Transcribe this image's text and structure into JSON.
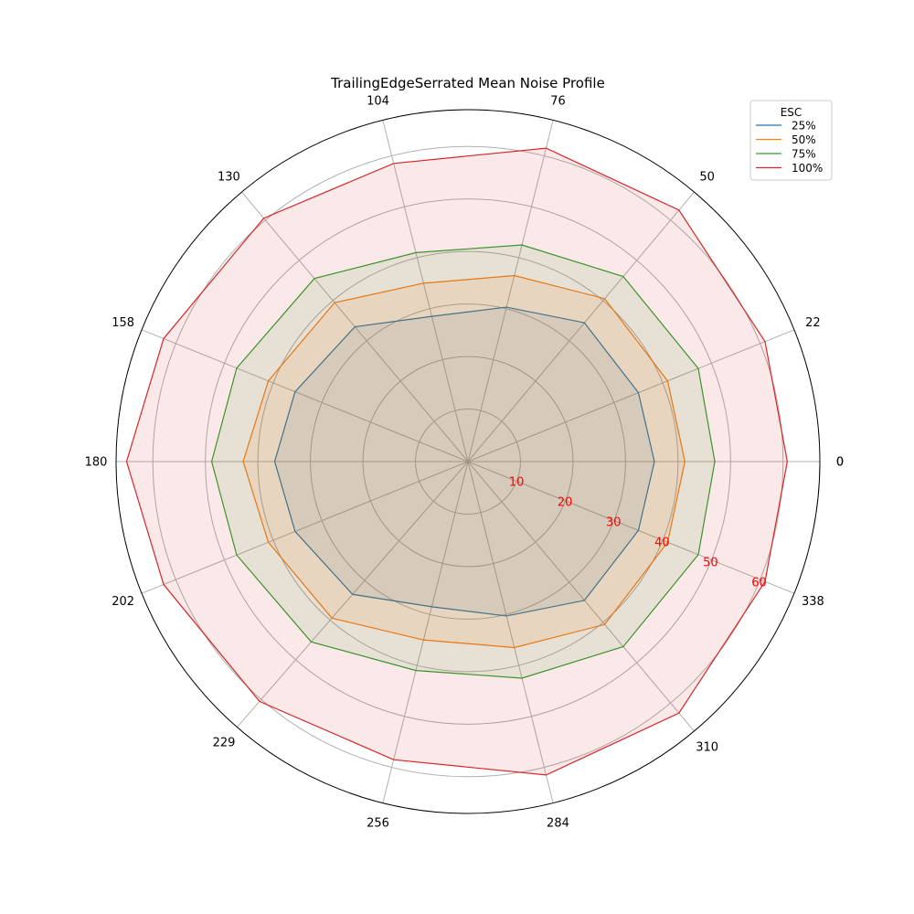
{
  "chart_data": {
    "type": "radar",
    "title": "TrailingEdgeSerrated Mean Noise Profile",
    "angles_deg": [
      0,
      22,
      50,
      76,
      104,
      130,
      158,
      180,
      202,
      229,
      256,
      284,
      310,
      338,
      0
    ],
    "angle_tick_labels": [
      "0",
      "22",
      "50",
      "76",
      "104",
      "130",
      "158",
      "180",
      "202",
      "229",
      "256",
      "284",
      "310",
      "338",
      "0"
    ],
    "r_ticks": [
      10,
      20,
      30,
      40,
      50,
      60
    ],
    "r_tick_labels": [
      "10",
      "20",
      "30",
      "40",
      "50",
      "60"
    ],
    "rlim": [
      0,
      67
    ],
    "grid": true,
    "legend": {
      "title": "ESC",
      "location": "top-right"
    },
    "series": [
      {
        "name": "25%",
        "color": "#1f77b4",
        "values": [
          35.5,
          35.0,
          34.5,
          30.3,
          28.5,
          33.5,
          35.5,
          36.8,
          35.5,
          33.5,
          28.5,
          30.3,
          34.5,
          35.0,
          35.5
        ]
      },
      {
        "name": "50%",
        "color": "#ff7f0e",
        "values": [
          41.3,
          41.0,
          40.5,
          36.5,
          35.0,
          39.5,
          41.0,
          42.8,
          41.0,
          39.5,
          35.0,
          36.5,
          40.5,
          41.0,
          41.3
        ]
      },
      {
        "name": "75%",
        "color": "#2ca02c",
        "values": [
          47.0,
          47.3,
          46.0,
          42.5,
          41.0,
          45.5,
          47.5,
          48.8,
          47.5,
          45.5,
          41.0,
          42.5,
          46.0,
          47.3,
          47.0
        ]
      },
      {
        "name": "100%",
        "color": "#d62728",
        "values": [
          60.8,
          61.0,
          62.5,
          61.5,
          58.5,
          60.5,
          62.5,
          65.0,
          62.5,
          60.5,
          58.5,
          61.5,
          62.5,
          61.0,
          60.8
        ]
      }
    ]
  }
}
